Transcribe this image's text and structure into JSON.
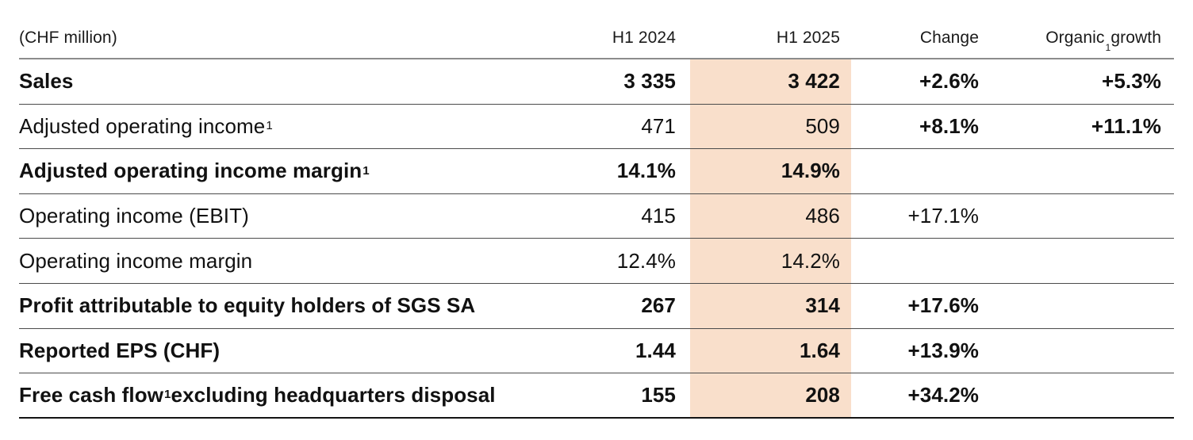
{
  "colors": {
    "highlight_column_bg": "#f9dfcb",
    "header_rule": "#8c8c8c",
    "row_rule": "#4b4b4b",
    "bottom_rule": "#141414",
    "text": "#111111"
  },
  "table": {
    "unit_label": "(CHF million)",
    "columns": [
      {
        "label": "H1 2024"
      },
      {
        "label": "H1 2025",
        "highlighted": true
      },
      {
        "label": "Change"
      },
      {
        "label_pre": "Organic",
        "sup": "1",
        "label_post": " growth"
      }
    ],
    "rows": [
      {
        "label_pre": "Sales",
        "values": {
          "h1_2024": "3 335",
          "h1_2025": "3 422",
          "change": "+2.6%",
          "organic": "+5.3%"
        }
      },
      {
        "label_pre": "Adjusted operating income",
        "sup": "1",
        "values": {
          "h1_2024": "471",
          "h1_2025": "509",
          "change": "+8.1%",
          "organic": "+11.1%"
        }
      },
      {
        "label_pre": "Adjusted operating income margin",
        "sup": "1",
        "values": {
          "h1_2024": "14.1%",
          "h1_2025": "14.9%",
          "change": "",
          "organic": ""
        }
      },
      {
        "label_pre": "Operating income (EBIT)",
        "values": {
          "h1_2024": "415",
          "h1_2025": "486",
          "change": "+17.1%",
          "organic": ""
        }
      },
      {
        "label_pre": "Operating income margin",
        "values": {
          "h1_2024": "12.4%",
          "h1_2025": "14.2%",
          "change": "",
          "organic": ""
        }
      },
      {
        "label_pre": "Profit attributable to equity holders of SGS SA",
        "values": {
          "h1_2024": "267",
          "h1_2025": "314",
          "change": "+17.6%",
          "organic": ""
        }
      },
      {
        "label_pre": "Reported EPS (CHF)",
        "values": {
          "h1_2024": "1.44",
          "h1_2025": "1.64",
          "change": "+13.9%",
          "organic": ""
        }
      },
      {
        "label_pre": "Free cash flow",
        "sup": "1",
        "label_post": " excluding headquarters disposal",
        "values": {
          "h1_2024": "155",
          "h1_2025": "208",
          "change": "+34.2%",
          "organic": ""
        }
      }
    ]
  }
}
